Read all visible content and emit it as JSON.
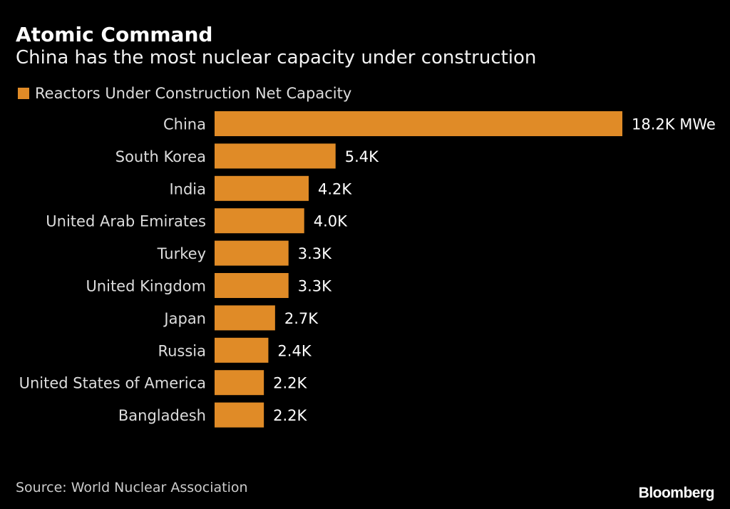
{
  "chart_data": {
    "type": "bar",
    "orientation": "horizontal",
    "title": "Atomic Command",
    "subtitle": "China has the most nuclear capacity under construction",
    "series": [
      {
        "name": "Reactors Under Construction Net Capacity",
        "color": "#e08b27",
        "values": [
          18.2,
          5.4,
          4.2,
          4.0,
          3.3,
          3.3,
          2.7,
          2.4,
          2.2,
          2.2
        ]
      }
    ],
    "categories": [
      "China",
      "South Korea",
      "India",
      "United Arab Emirates",
      "Turkey",
      "United Kingdom",
      "Japan",
      "Russia",
      "United States of America",
      "Bangladesh"
    ],
    "data_labels": [
      "18.2K MWe",
      "5.4K",
      "4.2K",
      "4.0K",
      "3.3K",
      "3.3K",
      "2.7K",
      "2.4K",
      "2.2K",
      "2.2K"
    ],
    "unit": "MWe",
    "legend_placement": "top-left",
    "grid": false,
    "source": "Source: World Nuclear Association"
  },
  "branding": {
    "logo": "Bloomberg"
  }
}
